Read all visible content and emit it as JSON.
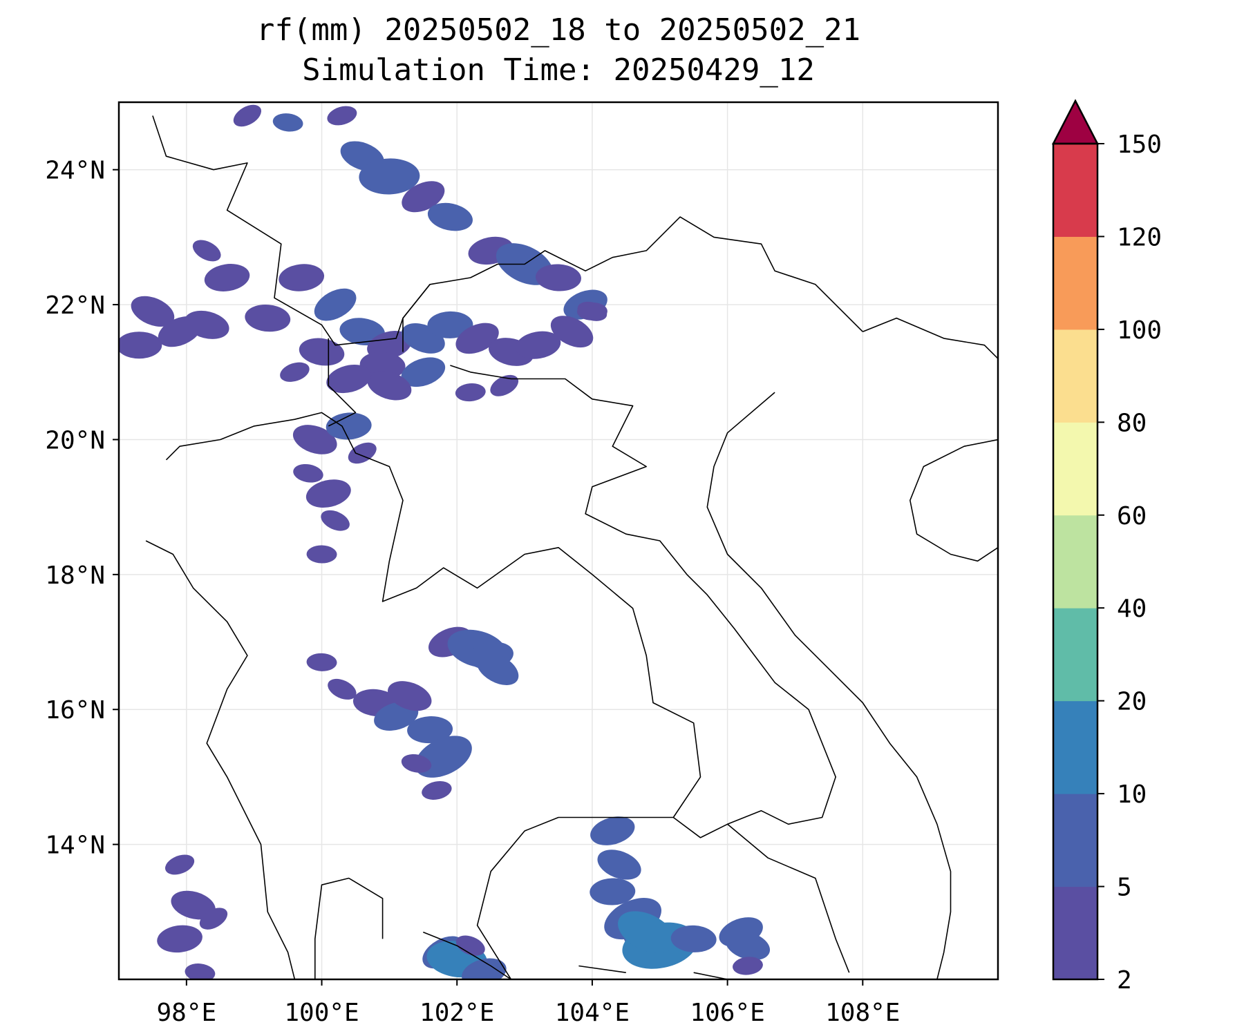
{
  "title": {
    "line1": "rf(mm) 20250502_18 to 20250502_21",
    "line2": "Simulation Time: 20250429_12"
  },
  "map": {
    "lon_range": [
      97.0,
      110.0
    ],
    "lat_range": [
      12.0,
      25.0
    ],
    "lon_ticks": [
      98,
      100,
      102,
      104,
      106,
      108
    ],
    "lat_ticks": [
      14,
      16,
      18,
      20,
      22,
      24
    ],
    "lon_tick_labels": [
      "98°E",
      "100°E",
      "102°E",
      "104°E",
      "106°E",
      "108°E"
    ],
    "lat_tick_labels": [
      "14°N",
      "16°N",
      "18°N",
      "20°N",
      "22°N",
      "24°N"
    ],
    "grid": true,
    "borders": [
      [
        [
          97.5,
          24.8
        ],
        [
          97.7,
          24.2
        ],
        [
          98.4,
          24.0
        ],
        [
          98.9,
          24.1
        ],
        [
          98.6,
          23.4
        ],
        [
          99.4,
          22.9
        ],
        [
          99.3,
          22.1
        ],
        [
          100.0,
          21.7
        ],
        [
          100.2,
          21.4
        ],
        [
          101.1,
          21.5
        ],
        [
          101.2,
          21.8
        ],
        [
          101.6,
          22.3
        ],
        [
          102.2,
          22.4
        ],
        [
          102.6,
          22.6
        ],
        [
          103.0,
          22.6
        ],
        [
          103.3,
          22.8
        ],
        [
          103.9,
          22.5
        ],
        [
          104.3,
          22.7
        ],
        [
          104.8,
          22.8
        ],
        [
          105.3,
          23.3
        ],
        [
          105.8,
          23.0
        ],
        [
          106.5,
          22.9
        ],
        [
          106.7,
          22.5
        ],
        [
          107.3,
          22.3
        ],
        [
          108.0,
          21.6
        ]
      ],
      [
        [
          97.4,
          18.5
        ],
        [
          97.8,
          18.3
        ],
        [
          98.1,
          17.8
        ],
        [
          98.6,
          17.3
        ],
        [
          98.9,
          16.8
        ],
        [
          98.6,
          16.3
        ],
        [
          98.3,
          15.5
        ],
        [
          98.6,
          15.0
        ],
        [
          99.1,
          14.0
        ],
        [
          99.2,
          13.0
        ],
        [
          99.5,
          12.4
        ],
        [
          99.6,
          12.0
        ]
      ],
      [
        [
          97.7,
          19.7
        ],
        [
          97.9,
          19.9
        ],
        [
          98.5,
          20.0
        ],
        [
          99.0,
          20.2
        ],
        [
          99.6,
          20.3
        ],
        [
          100.0,
          20.4
        ],
        [
          100.3,
          20.2
        ],
        [
          100.5,
          19.8
        ],
        [
          101.0,
          19.6
        ],
        [
          101.2,
          19.1
        ],
        [
          101.0,
          18.2
        ],
        [
          100.9,
          17.6
        ],
        [
          101.4,
          17.8
        ],
        [
          101.8,
          18.1
        ],
        [
          102.3,
          17.8
        ],
        [
          103.0,
          18.3
        ],
        [
          103.5,
          18.4
        ],
        [
          104.0,
          18.0
        ],
        [
          104.6,
          17.5
        ],
        [
          104.8,
          16.8
        ],
        [
          104.9,
          16.1
        ],
        [
          105.5,
          15.8
        ],
        [
          105.6,
          15.0
        ],
        [
          105.2,
          14.4
        ],
        [
          104.5,
          14.4
        ],
        [
          103.5,
          14.4
        ],
        [
          103.0,
          14.2
        ],
        [
          102.5,
          13.6
        ],
        [
          102.3,
          12.8
        ],
        [
          102.8,
          12.0
        ]
      ],
      [
        [
          100.1,
          21.5
        ],
        [
          100.1,
          20.8
        ],
        [
          100.5,
          20.4
        ],
        [
          100.1,
          20.2
        ]
      ],
      [
        [
          101.2,
          21.3
        ],
        [
          101.2,
          21.8
        ],
        [
          101.6,
          22.3
        ]
      ],
      [
        [
          101.9,
          21.1
        ],
        [
          102.2,
          21.0
        ],
        [
          102.8,
          20.9
        ],
        [
          103.6,
          20.9
        ],
        [
          104.0,
          20.6
        ],
        [
          104.6,
          20.5
        ],
        [
          104.3,
          19.9
        ],
        [
          104.8,
          19.6
        ],
        [
          104.0,
          19.3
        ],
        [
          103.9,
          18.9
        ],
        [
          104.5,
          18.6
        ],
        [
          105.0,
          18.5
        ],
        [
          105.4,
          18.0
        ],
        [
          105.7,
          17.7
        ],
        [
          106.1,
          17.2
        ],
        [
          106.4,
          16.8
        ],
        [
          106.7,
          16.4
        ],
        [
          107.2,
          16.0
        ],
        [
          107.4,
          15.5
        ],
        [
          107.6,
          15.0
        ],
        [
          107.4,
          14.4
        ],
        [
          106.9,
          14.3
        ],
        [
          106.5,
          14.5
        ],
        [
          106.0,
          14.3
        ],
        [
          105.6,
          14.1
        ],
        [
          105.2,
          14.4
        ]
      ],
      [
        [
          106.0,
          14.3
        ],
        [
          106.6,
          13.8
        ],
        [
          107.3,
          13.5
        ],
        [
          107.6,
          12.6
        ],
        [
          107.8,
          12.1
        ]
      ],
      [
        [
          100.9,
          12.6
        ],
        [
          100.9,
          13.2
        ],
        [
          100.4,
          13.5
        ],
        [
          100.0,
          13.4
        ],
        [
          99.9,
          12.6
        ],
        [
          99.9,
          12.0
        ]
      ],
      [
        [
          101.5,
          12.7
        ],
        [
          102.0,
          12.5
        ],
        [
          102.5,
          12.2
        ],
        [
          102.8,
          12.0
        ]
      ],
      [
        [
          103.8,
          12.2
        ],
        [
          104.5,
          12.1
        ]
      ],
      [
        [
          105.5,
          12.1
        ],
        [
          106.0,
          12.0
        ]
      ],
      [
        [
          106.7,
          20.7
        ],
        [
          106.0,
          20.1
        ],
        [
          105.8,
          19.6
        ],
        [
          105.7,
          19.0
        ],
        [
          106.0,
          18.3
        ],
        [
          106.5,
          17.8
        ],
        [
          107.0,
          17.1
        ],
        [
          107.5,
          16.6
        ],
        [
          108.0,
          16.1
        ],
        [
          108.4,
          15.5
        ],
        [
          108.8,
          15.0
        ],
        [
          109.1,
          14.3
        ],
        [
          109.3,
          13.6
        ],
        [
          109.3,
          13.0
        ],
        [
          109.2,
          12.4
        ],
        [
          109.1,
          12.0
        ]
      ],
      [
        [
          108.0,
          21.6
        ],
        [
          108.5,
          21.8
        ],
        [
          109.2,
          21.5
        ],
        [
          109.8,
          21.4
        ],
        [
          110.0,
          21.2
        ]
      ],
      [
        [
          110.0,
          20.0
        ],
        [
          109.5,
          19.9
        ],
        [
          108.9,
          19.6
        ],
        [
          108.7,
          19.1
        ],
        [
          108.8,
          18.6
        ],
        [
          109.3,
          18.3
        ],
        [
          109.7,
          18.2
        ],
        [
          110.0,
          18.4
        ]
      ]
    ],
    "rain_cells": [
      [
        98.9,
        24.8,
        4,
        2
      ],
      [
        99.5,
        24.7,
        5,
        2
      ],
      [
        100.3,
        24.8,
        4,
        2
      ],
      [
        100.6,
        24.2,
        5,
        3
      ],
      [
        101.0,
        23.9,
        5,
        4
      ],
      [
        101.5,
        23.6,
        4,
        3
      ],
      [
        101.9,
        23.3,
        5,
        3
      ],
      [
        102.5,
        22.8,
        4,
        3
      ],
      [
        103.0,
        22.6,
        5,
        4
      ],
      [
        103.5,
        22.4,
        4,
        3
      ],
      [
        103.9,
        22.0,
        5,
        3
      ],
      [
        104.0,
        21.9,
        2,
        2
      ],
      [
        99.7,
        22.4,
        4,
        3
      ],
      [
        100.2,
        22.0,
        5,
        3
      ],
      [
        100.6,
        21.6,
        5,
        3
      ],
      [
        101.0,
        21.4,
        4,
        3
      ],
      [
        101.5,
        21.5,
        5,
        3
      ],
      [
        101.9,
        21.7,
        5,
        3
      ],
      [
        102.3,
        21.5,
        4,
        3
      ],
      [
        102.8,
        21.3,
        4,
        3
      ],
      [
        103.2,
        21.4,
        4,
        3
      ],
      [
        103.7,
        21.6,
        3,
        3
      ],
      [
        100.9,
        21.1,
        4,
        3
      ],
      [
        101.5,
        21.0,
        5,
        3
      ],
      [
        101.0,
        20.8,
        4,
        3
      ],
      [
        102.2,
        20.7,
        3,
        2
      ],
      [
        102.7,
        20.8,
        4,
        2
      ],
      [
        100.0,
        21.3,
        3,
        3
      ],
      [
        100.4,
        20.9,
        3,
        3
      ],
      [
        97.5,
        21.9,
        3,
        3
      ],
      [
        97.3,
        21.4,
        3,
        3
      ],
      [
        97.9,
        21.6,
        4,
        3
      ],
      [
        98.3,
        21.7,
        3,
        3
      ],
      [
        98.6,
        22.4,
        4,
        3
      ],
      [
        98.3,
        22.8,
        3,
        2
      ],
      [
        99.2,
        21.8,
        3,
        3
      ],
      [
        99.6,
        21.0,
        3,
        2
      ],
      [
        99.9,
        20.0,
        4,
        3
      ],
      [
        100.4,
        20.2,
        5,
        3
      ],
      [
        100.6,
        19.8,
        3,
        2
      ],
      [
        99.8,
        19.5,
        3,
        2
      ],
      [
        100.1,
        19.2,
        4,
        3
      ],
      [
        100.2,
        18.8,
        3,
        2
      ],
      [
        100.0,
        18.3,
        3,
        2
      ],
      [
        101.9,
        17.0,
        4,
        3
      ],
      [
        102.3,
        16.9,
        5,
        4
      ],
      [
        102.5,
        16.8,
        5,
        3
      ],
      [
        102.6,
        16.6,
        5,
        3
      ],
      [
        100.8,
        16.1,
        4,
        3
      ],
      [
        101.1,
        15.9,
        5,
        3
      ],
      [
        101.3,
        16.2,
        4,
        3
      ],
      [
        101.6,
        15.7,
        5,
        3
      ],
      [
        101.8,
        15.3,
        5,
        4
      ],
      [
        101.4,
        15.2,
        3,
        2
      ],
      [
        101.7,
        14.8,
        3,
        2
      ],
      [
        100.3,
        16.3,
        3,
        2
      ],
      [
        100.0,
        16.7,
        3,
        2
      ],
      [
        97.9,
        13.7,
        3,
        2
      ],
      [
        98.1,
        13.1,
        3,
        3
      ],
      [
        97.9,
        12.6,
        3,
        3
      ],
      [
        98.4,
        12.9,
        3,
        2
      ],
      [
        98.2,
        12.1,
        3,
        2
      ],
      [
        104.3,
        14.2,
        5,
        3
      ],
      [
        104.4,
        13.7,
        5,
        3
      ],
      [
        104.3,
        13.3,
        5,
        3
      ],
      [
        104.6,
        12.9,
        5,
        4
      ],
      [
        104.9,
        12.6,
        5,
        4
      ],
      [
        105.0,
        12.5,
        10,
        5
      ],
      [
        104.8,
        12.7,
        10,
        4
      ],
      [
        105.5,
        12.6,
        5,
        3
      ],
      [
        106.2,
        12.7,
        5,
        3
      ],
      [
        106.3,
        12.5,
        5,
        3
      ],
      [
        106.3,
        12.2,
        3,
        2
      ],
      [
        101.8,
        12.4,
        5,
        3
      ],
      [
        102.0,
        12.3,
        10,
        4
      ],
      [
        102.4,
        12.1,
        5,
        3
      ],
      [
        102.2,
        12.5,
        3,
        2
      ],
      [
        104.0,
        21.9,
        3,
        2
      ]
    ]
  },
  "colorbar": {
    "tick_labels": [
      "2",
      "5",
      "10",
      "20",
      "40",
      "60",
      "80",
      "100",
      "120",
      "150"
    ],
    "band_colors": [
      "#5a4fa2",
      "#4a62ad",
      "#3681ba",
      "#60bca8",
      "#bde3a0",
      "#f3f8ae",
      "#fbde8f",
      "#f89b59",
      "#d83b4c"
    ],
    "extend_color": "#9e0142"
  }
}
